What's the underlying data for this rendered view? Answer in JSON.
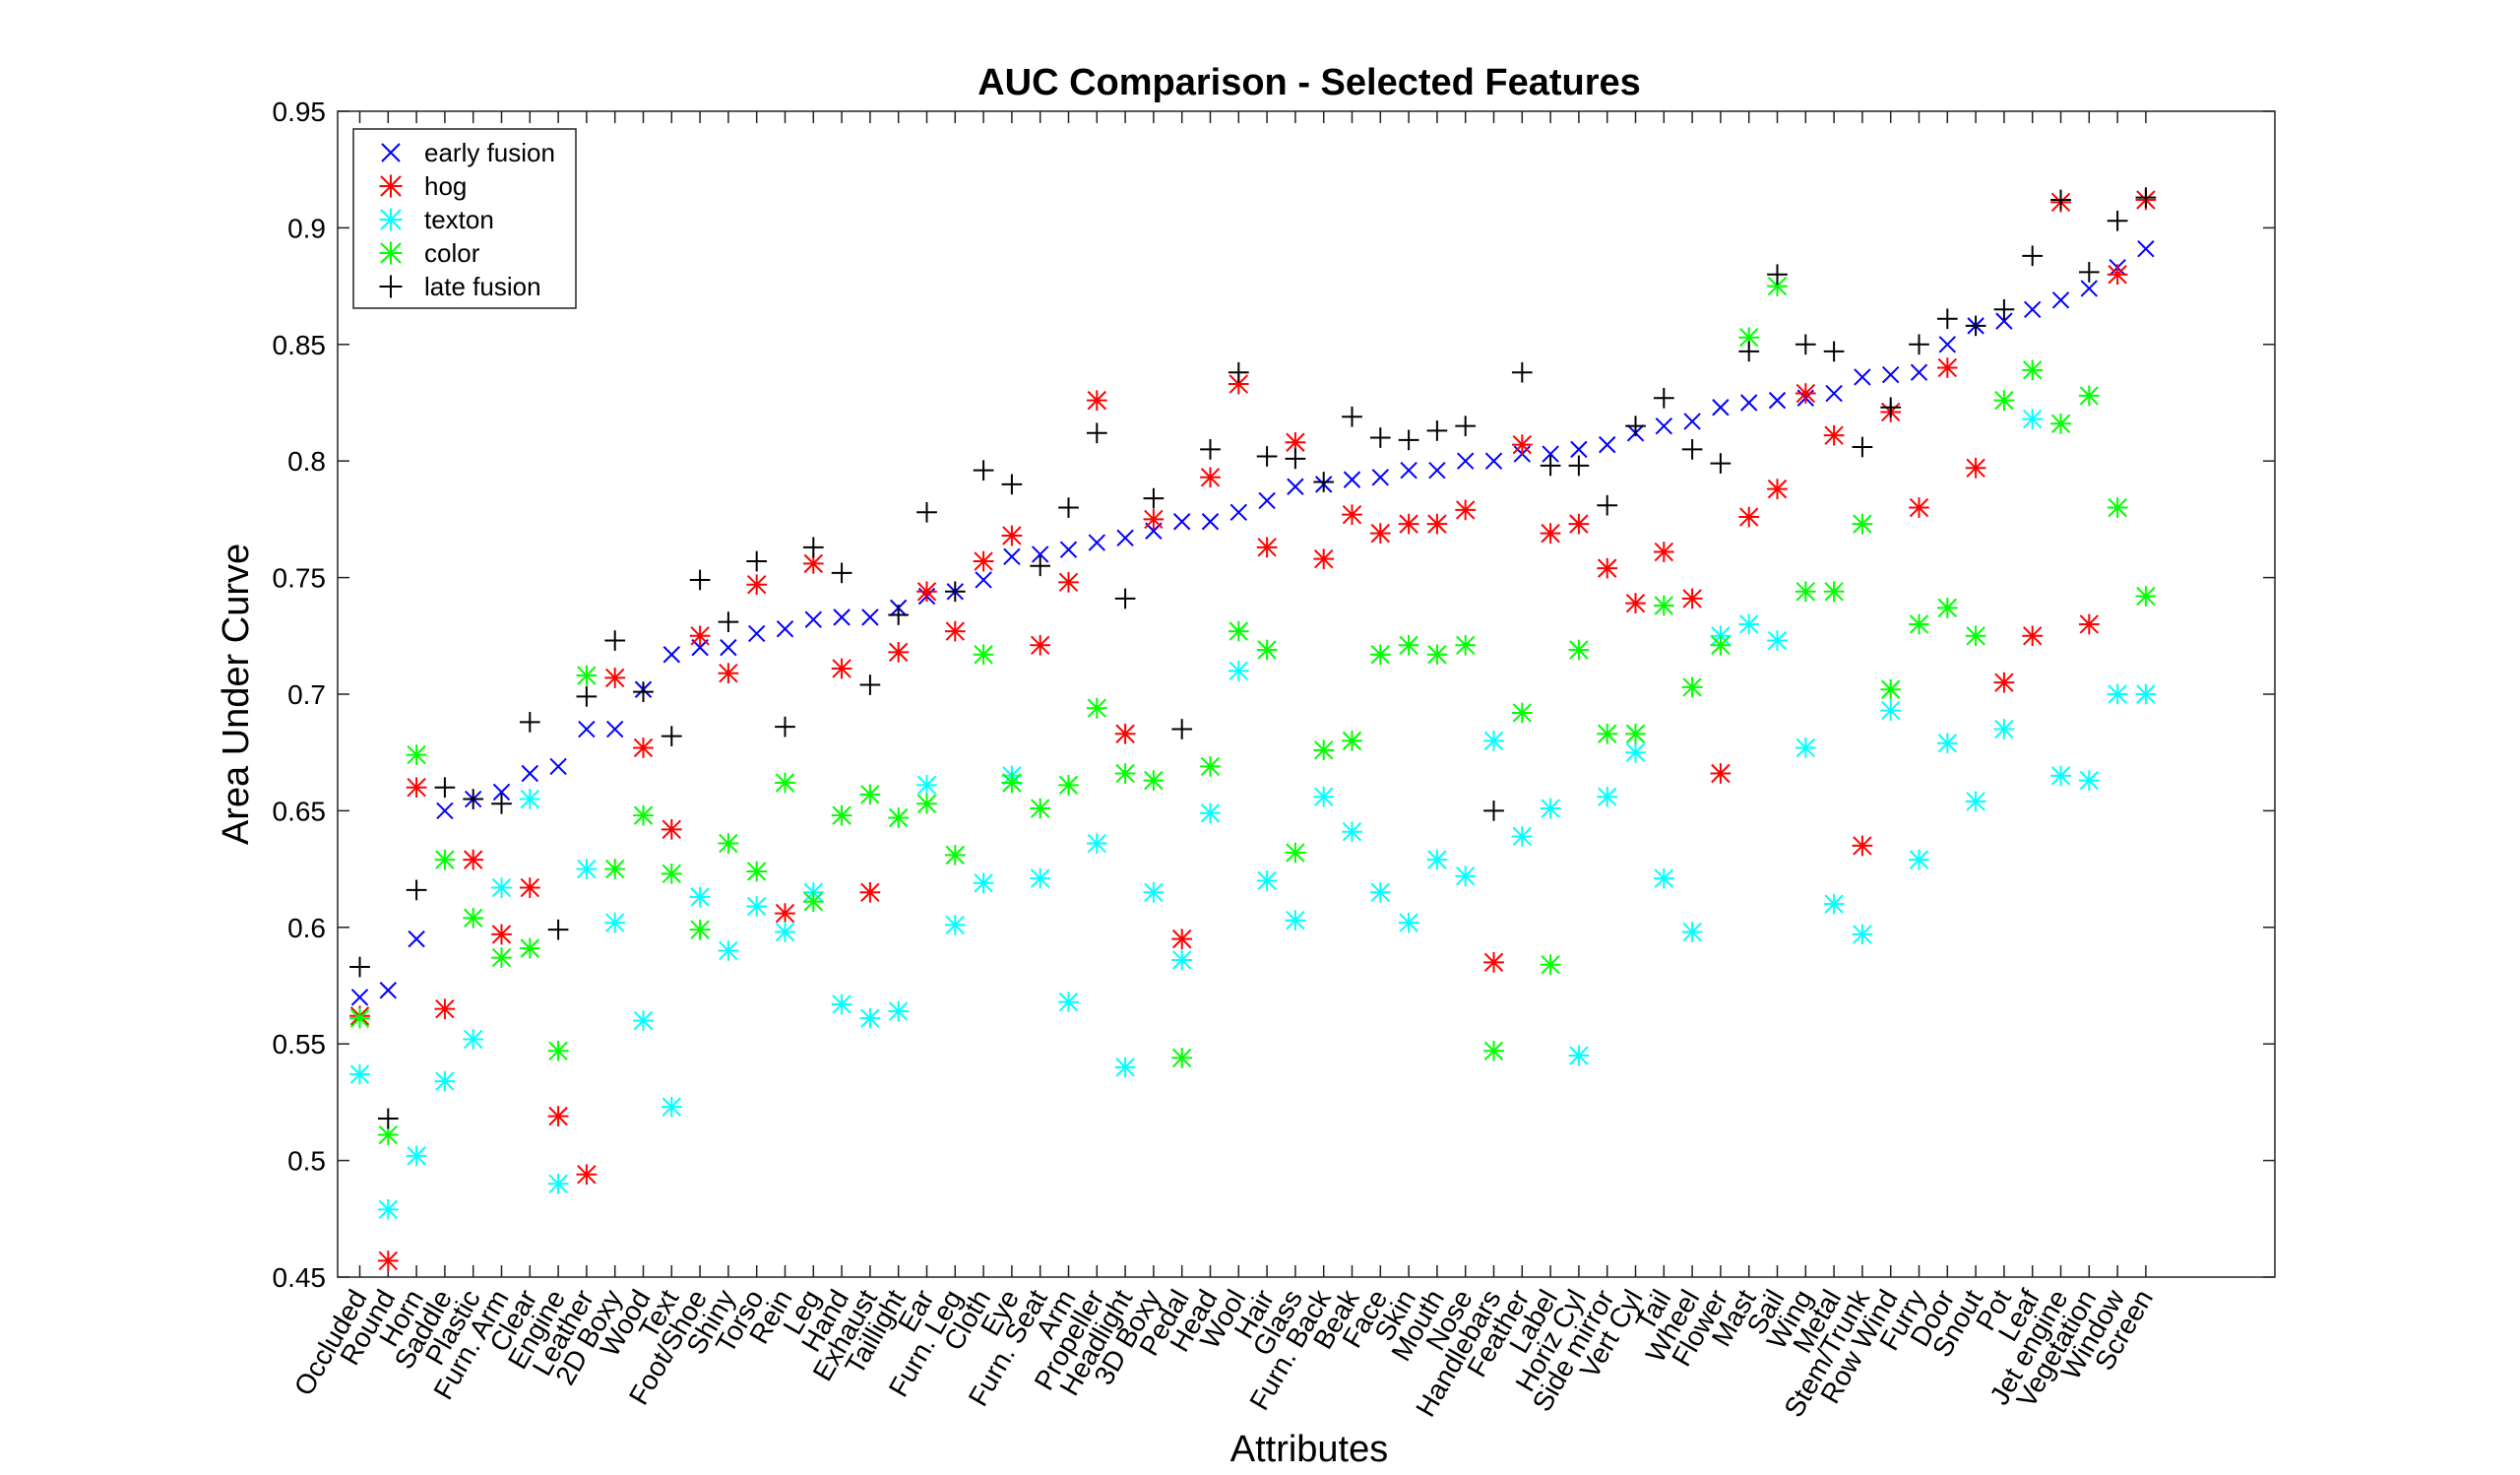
{
  "chart_data": {
    "type": "scatter",
    "title": "AUC Comparison - Selected Features",
    "xlabel": "Attributes",
    "ylabel": "Area Under Curve",
    "ylim": [
      0.45,
      0.95
    ],
    "yticks": [
      "0.45",
      "0.5",
      "0.55",
      "0.6",
      "0.65",
      "0.7",
      "0.75",
      "0.8",
      "0.85",
      "0.9",
      "0.95"
    ],
    "grid": false,
    "legend_position": "top-left",
    "categories": [
      "Occluded",
      "Round",
      "Horn",
      "Saddle",
      "Plastic",
      "Furn. Arm",
      "Clear",
      "Engine",
      "Leather",
      "2D Boxy",
      "Wood",
      "Text",
      "Foot/Shoe",
      "Shiny",
      "Torso",
      "Rein",
      "Leg",
      "Hand",
      "Exhaust",
      "Taillight",
      "Ear",
      "Furn. Leg",
      "Cloth",
      "Eye",
      "Furn. Seat",
      "Arm",
      "Propeller",
      "Headlight",
      "3D Boxy",
      "Pedal",
      "Head",
      "Wool",
      "Hair",
      "Glass",
      "Furn. Back",
      "Beak",
      "Face",
      "Skin",
      "Mouth",
      "Nose",
      "Handlebars",
      "Feather",
      "Label",
      "Horiz Cyl",
      "Side mirror",
      "Vert Cyl",
      "Tail",
      "Wheel",
      "Flower",
      "Mast",
      "Sail",
      "Wing",
      "Metal",
      "Stem/Trunk",
      "Row Wind",
      "Furry",
      "Door",
      "Snout",
      "Pot",
      "Leaf",
      "Jet engine",
      "Vegetation",
      "Window",
      "Screen"
    ],
    "series": [
      {
        "name": "early fusion",
        "marker": "x",
        "color": "#0000ff",
        "values": [
          0.57,
          0.573,
          0.595,
          0.65,
          0.655,
          0.658,
          0.666,
          0.669,
          0.685,
          0.685,
          0.702,
          0.717,
          0.72,
          0.72,
          0.726,
          0.728,
          0.732,
          0.733,
          0.733,
          0.737,
          0.742,
          0.744,
          0.749,
          0.759,
          0.76,
          0.762,
          0.765,
          0.767,
          0.77,
          0.774,
          0.774,
          0.778,
          0.783,
          0.789,
          0.79,
          0.792,
          0.793,
          0.796,
          0.796,
          0.8,
          0.8,
          0.803,
          0.803,
          0.805,
          0.807,
          0.812,
          0.815,
          0.817,
          0.823,
          0.825,
          0.826,
          0.827,
          0.829,
          0.836,
          0.837,
          0.838,
          0.85,
          0.858,
          0.86,
          0.865,
          0.869,
          0.874,
          0.883,
          0.891
        ]
      },
      {
        "name": "hog",
        "marker": "*",
        "color": "#ff0000",
        "values": [
          0.562,
          0.457,
          0.66,
          0.565,
          0.629,
          0.597,
          0.617,
          0.519,
          0.494,
          0.707,
          0.677,
          0.642,
          0.725,
          0.709,
          0.747,
          0.606,
          0.756,
          0.711,
          0.615,
          0.718,
          0.744,
          0.727,
          0.757,
          0.768,
          0.721,
          0.748,
          0.826,
          0.683,
          0.775,
          0.595,
          0.793,
          0.833,
          0.763,
          0.808,
          0.758,
          0.777,
          0.769,
          0.773,
          0.773,
          0.779,
          0.585,
          0.807,
          0.769,
          0.773,
          0.754,
          0.739,
          0.761,
          0.741,
          0.666,
          0.776,
          0.788,
          0.829,
          0.811,
          0.635,
          0.821,
          0.78,
          0.84,
          0.797,
          0.705,
          0.725,
          0.911,
          0.73,
          0.88,
          0.912
        ]
      },
      {
        "name": "texton",
        "marker": "*",
        "color": "#00ffff",
        "values": [
          0.537,
          0.479,
          0.502,
          0.534,
          0.552,
          0.617,
          0.655,
          0.49,
          0.625,
          0.602,
          0.56,
          0.523,
          0.613,
          0.59,
          0.609,
          0.598,
          0.615,
          0.567,
          0.561,
          0.564,
          0.661,
          0.601,
          0.619,
          0.665,
          0.621,
          0.568,
          0.636,
          0.54,
          0.615,
          0.586,
          0.649,
          0.71,
          0.62,
          0.603,
          0.656,
          0.641,
          0.615,
          0.602,
          0.629,
          0.622,
          0.68,
          0.639,
          0.651,
          0.545,
          0.656,
          0.675,
          0.621,
          0.598,
          0.725,
          0.73,
          0.723,
          0.677,
          0.61,
          0.597,
          0.693,
          0.629,
          0.679,
          0.654,
          0.685,
          0.818,
          0.665,
          0.663,
          0.7,
          0.7
        ]
      },
      {
        "name": "color",
        "marker": "*",
        "color": "#00ff00",
        "values": [
          0.561,
          0.511,
          0.674,
          0.629,
          0.604,
          0.587,
          0.591,
          0.547,
          0.708,
          0.625,
          0.648,
          0.623,
          0.599,
          0.636,
          0.624,
          0.662,
          0.611,
          0.648,
          0.657,
          0.647,
          0.653,
          0.631,
          0.717,
          0.662,
          0.651,
          0.661,
          0.694,
          0.666,
          0.663,
          0.544,
          0.669,
          0.727,
          0.719,
          0.632,
          0.676,
          0.68,
          0.717,
          0.721,
          0.717,
          0.721,
          0.547,
          0.692,
          0.584,
          0.719,
          0.683,
          0.683,
          0.738,
          0.703,
          0.721,
          0.853,
          0.875,
          0.744,
          0.744,
          0.773,
          0.702,
          0.73,
          0.737,
          0.725,
          0.826,
          0.839,
          0.816,
          0.828,
          0.78,
          0.742
        ]
      },
      {
        "name": "late fusion",
        "marker": "+",
        "color": "#000000",
        "values": [
          0.583,
          0.518,
          0.616,
          0.66,
          0.655,
          0.653,
          0.688,
          0.599,
          0.699,
          0.723,
          0.701,
          0.682,
          0.749,
          0.731,
          0.757,
          0.686,
          0.763,
          0.752,
          0.704,
          0.734,
          0.778,
          0.744,
          0.796,
          0.79,
          0.755,
          0.78,
          0.812,
          0.741,
          0.784,
          0.685,
          0.805,
          0.838,
          0.802,
          0.801,
          0.791,
          0.819,
          0.81,
          0.809,
          0.813,
          0.815,
          0.65,
          0.838,
          0.798,
          0.798,
          0.781,
          0.815,
          0.827,
          0.805,
          0.799,
          0.847,
          0.88,
          0.85,
          0.847,
          0.806,
          0.823,
          0.85,
          0.861,
          0.858,
          0.865,
          0.888,
          0.912,
          0.881,
          0.903,
          0.913
        ]
      }
    ]
  }
}
